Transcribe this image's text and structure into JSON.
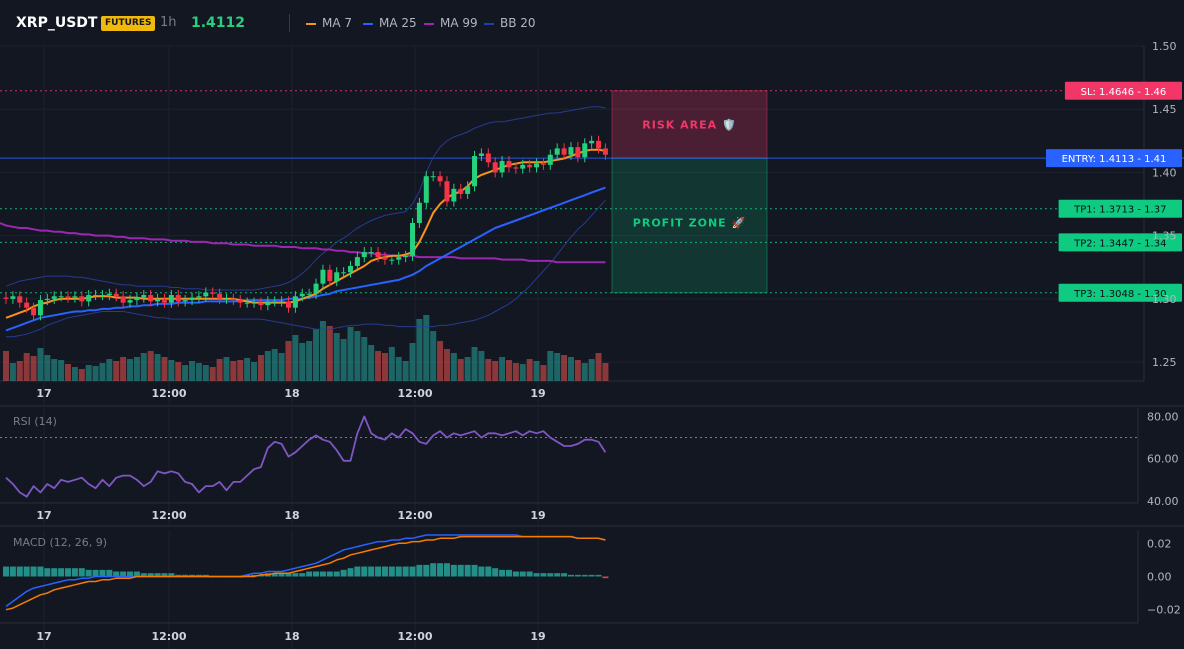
{
  "header": {
    "symbol": "XRP_USDT",
    "badge": "FUTURES",
    "interval": "1h",
    "price": "1.4112",
    "legend": [
      {
        "label": "MA 7",
        "color": "#f7931a"
      },
      {
        "label": "MA 25",
        "color": "#2962ff"
      },
      {
        "label": "MA 99",
        "color": "#9c27b0"
      },
      {
        "label": "BB 20",
        "color": "#1e40af"
      }
    ]
  },
  "colors": {
    "up": "#26a69a",
    "down": "#ef5350",
    "bg": "#131722",
    "risk": "#f23667",
    "entry": "#2962ff",
    "tp": "#0ecb81"
  },
  "chart_data": [
    {
      "type": "candlestick",
      "title": "XRP_USDT 1h",
      "x_ticks": [
        "17",
        "12:00",
        "18",
        "12:00",
        "19"
      ],
      "y_ticks": [
        "1.50",
        "1.45",
        "1.40",
        "1.35",
        "1.30",
        "1.25"
      ],
      "ylim": [
        1.235,
        1.5
      ],
      "close": [
        1.3,
        1.302,
        1.297,
        1.293,
        1.287,
        1.299,
        1.3,
        1.302,
        1.302,
        1.301,
        1.302,
        1.298,
        1.303,
        1.303,
        1.303,
        1.304,
        1.302,
        1.297,
        1.299,
        1.301,
        1.303,
        1.298,
        1.3,
        1.297,
        1.303,
        1.298,
        1.299,
        1.301,
        1.302,
        1.305,
        1.304,
        1.3,
        1.3,
        1.299,
        1.297,
        1.297,
        1.297,
        1.295,
        1.298,
        1.298,
        1.298,
        1.293,
        1.302,
        1.304,
        1.304,
        1.312,
        1.323,
        1.314,
        1.321,
        1.321,
        1.326,
        1.333,
        1.337,
        1.337,
        1.333,
        1.331,
        1.331,
        1.333,
        1.334,
        1.36,
        1.376,
        1.397,
        1.397,
        1.393,
        1.377,
        1.387,
        1.383,
        1.389,
        1.413,
        1.415,
        1.408,
        1.4,
        1.409,
        1.404,
        1.403,
        1.406,
        1.404,
        1.407,
        1.406,
        1.414,
        1.419,
        1.414,
        1.42,
        1.412,
        1.423,
        1.425,
        1.419,
        1.414
      ],
      "open": [
        1.301,
        1.3,
        1.302,
        1.297,
        1.293,
        1.287,
        1.299,
        1.3,
        1.302,
        1.302,
        1.301,
        1.302,
        1.298,
        1.303,
        1.303,
        1.303,
        1.304,
        1.302,
        1.297,
        1.299,
        1.301,
        1.303,
        1.298,
        1.3,
        1.297,
        1.303,
        1.298,
        1.299,
        1.301,
        1.302,
        1.305,
        1.304,
        1.3,
        1.3,
        1.299,
        1.297,
        1.297,
        1.297,
        1.295,
        1.298,
        1.298,
        1.298,
        1.293,
        1.302,
        1.304,
        1.304,
        1.312,
        1.323,
        1.314,
        1.321,
        1.321,
        1.326,
        1.333,
        1.337,
        1.337,
        1.333,
        1.331,
        1.331,
        1.333,
        1.334,
        1.36,
        1.376,
        1.397,
        1.397,
        1.393,
        1.377,
        1.387,
        1.383,
        1.389,
        1.413,
        1.415,
        1.408,
        1.4,
        1.409,
        1.404,
        1.403,
        1.406,
        1.404,
        1.407,
        1.406,
        1.414,
        1.419,
        1.414,
        1.42,
        1.412,
        1.423,
        1.425,
        1.419
      ],
      "volume": [
        30,
        18,
        20,
        28,
        25,
        33,
        26,
        22,
        21,
        17,
        14,
        12,
        16,
        15,
        18,
        22,
        20,
        24,
        22,
        24,
        28,
        30,
        27,
        24,
        21,
        19,
        16,
        20,
        18,
        16,
        14,
        22,
        24,
        20,
        21,
        23,
        19,
        26,
        30,
        32,
        28,
        40,
        46,
        38,
        40,
        52,
        60,
        55,
        48,
        42,
        54,
        50,
        44,
        36,
        30,
        28,
        34,
        24,
        20,
        38,
        62,
        66,
        50,
        40,
        32,
        28,
        22,
        24,
        34,
        30,
        22,
        20,
        24,
        21,
        18,
        17,
        22,
        20,
        16,
        30,
        28,
        26,
        24,
        21,
        18,
        22,
        28,
        18
      ],
      "ma7": [
        1.285,
        1.287,
        1.289,
        1.291,
        1.294,
        1.296,
        1.297,
        1.299,
        1.3,
        1.3,
        1.3,
        1.3,
        1.301,
        1.302,
        1.302,
        1.302,
        1.301,
        1.301,
        1.301,
        1.301,
        1.3,
        1.3,
        1.3,
        1.3,
        1.3,
        1.3,
        1.3,
        1.3,
        1.3,
        1.3,
        1.3,
        1.3,
        1.3,
        1.3,
        1.299,
        1.298,
        1.297,
        1.297,
        1.297,
        1.297,
        1.297,
        1.297,
        1.298,
        1.3,
        1.302,
        1.304,
        1.308,
        1.311,
        1.314,
        1.317,
        1.32,
        1.323,
        1.326,
        1.33,
        1.332,
        1.333,
        1.334,
        1.334,
        1.335,
        1.337,
        1.345,
        1.356,
        1.368,
        1.375,
        1.38,
        1.383,
        1.385,
        1.389,
        1.395,
        1.398,
        1.4,
        1.402,
        1.404,
        1.406,
        1.407,
        1.408,
        1.408,
        1.408,
        1.408,
        1.409,
        1.41,
        1.411,
        1.413,
        1.415,
        1.417,
        1.418,
        1.418,
        1.417
      ],
      "ma25": [
        1.275,
        1.277,
        1.279,
        1.281,
        1.283,
        1.285,
        1.286,
        1.287,
        1.288,
        1.289,
        1.29,
        1.29,
        1.291,
        1.291,
        1.292,
        1.292,
        1.293,
        1.293,
        1.294,
        1.294,
        1.295,
        1.295,
        1.296,
        1.296,
        1.296,
        1.297,
        1.297,
        1.297,
        1.297,
        1.298,
        1.298,
        1.298,
        1.298,
        1.298,
        1.298,
        1.299,
        1.299,
        1.299,
        1.299,
        1.299,
        1.299,
        1.3,
        1.3,
        1.3,
        1.301,
        1.302,
        1.303,
        1.304,
        1.306,
        1.307,
        1.308,
        1.309,
        1.31,
        1.311,
        1.312,
        1.313,
        1.314,
        1.315,
        1.317,
        1.319,
        1.322,
        1.326,
        1.329,
        1.332,
        1.335,
        1.338,
        1.341,
        1.344,
        1.347,
        1.35,
        1.353,
        1.356,
        1.358,
        1.36,
        1.362,
        1.364,
        1.366,
        1.368,
        1.37,
        1.372,
        1.374,
        1.376,
        1.378,
        1.38,
        1.382,
        1.384,
        1.386,
        1.388
      ],
      "ma99": [
        1.358,
        1.357,
        1.356,
        1.356,
        1.355,
        1.354,
        1.354,
        1.353,
        1.353,
        1.352,
        1.352,
        1.351,
        1.351,
        1.35,
        1.35,
        1.35,
        1.349,
        1.349,
        1.348,
        1.348,
        1.348,
        1.347,
        1.347,
        1.347,
        1.346,
        1.346,
        1.346,
        1.345,
        1.345,
        1.345,
        1.344,
        1.344,
        1.344,
        1.343,
        1.343,
        1.343,
        1.342,
        1.342,
        1.342,
        1.342,
        1.341,
        1.341,
        1.341,
        1.34,
        1.34,
        1.34,
        1.339,
        1.339,
        1.338,
        1.338,
        1.337,
        1.337,
        1.336,
        1.336,
        1.335,
        1.335,
        1.334,
        1.334,
        1.334,
        1.334,
        1.333,
        1.333,
        1.333,
        1.333,
        1.333,
        1.333,
        1.332,
        1.332,
        1.332,
        1.332,
        1.332,
        1.332,
        1.331,
        1.331,
        1.331,
        1.331,
        1.33,
        1.33,
        1.33,
        1.33,
        1.329,
        1.329,
        1.329,
        1.329,
        1.329,
        1.329,
        1.329,
        1.329
      ],
      "bb_upper": [
        1.31,
        1.312,
        1.314,
        1.315,
        1.316,
        1.317,
        1.318,
        1.318,
        1.318,
        1.318,
        1.317,
        1.317,
        1.316,
        1.315,
        1.314,
        1.313,
        1.312,
        1.311,
        1.311,
        1.31,
        1.31,
        1.31,
        1.31,
        1.31,
        1.309,
        1.309,
        1.308,
        1.308,
        1.308,
        1.307,
        1.307,
        1.307,
        1.307,
        1.307,
        1.307,
        1.307,
        1.307,
        1.308,
        1.309,
        1.31,
        1.311,
        1.313,
        1.316,
        1.32,
        1.325,
        1.331,
        1.336,
        1.34,
        1.345,
        1.348,
        1.352,
        1.356,
        1.359,
        1.362,
        1.364,
        1.366,
        1.367,
        1.368,
        1.369,
        1.375,
        1.385,
        1.4,
        1.412,
        1.42,
        1.425,
        1.428,
        1.43,
        1.432,
        1.435,
        1.437,
        1.439,
        1.44,
        1.44,
        1.441,
        1.442,
        1.443,
        1.444,
        1.445,
        1.446,
        1.447,
        1.447,
        1.448,
        1.449,
        1.45,
        1.451,
        1.452,
        1.452,
        1.451
      ],
      "bb_lower": [
        1.27,
        1.27,
        1.271,
        1.272,
        1.274,
        1.276,
        1.279,
        1.281,
        1.283,
        1.285,
        1.286,
        1.287,
        1.288,
        1.289,
        1.29,
        1.29,
        1.29,
        1.29,
        1.289,
        1.288,
        1.287,
        1.286,
        1.285,
        1.285,
        1.284,
        1.284,
        1.284,
        1.284,
        1.284,
        1.284,
        1.284,
        1.284,
        1.284,
        1.284,
        1.284,
        1.284,
        1.284,
        1.284,
        1.283,
        1.282,
        1.281,
        1.28,
        1.279,
        1.278,
        1.277,
        1.276,
        1.276,
        1.276,
        1.277,
        1.278,
        1.279,
        1.279,
        1.28,
        1.28,
        1.28,
        1.279,
        1.279,
        1.278,
        1.278,
        1.278,
        1.278,
        1.278,
        1.278,
        1.279,
        1.279,
        1.28,
        1.281,
        1.282,
        1.283,
        1.285,
        1.287,
        1.29,
        1.293,
        1.296,
        1.3,
        1.305,
        1.31,
        1.316,
        1.322,
        1.328,
        1.335,
        1.342,
        1.349,
        1.355,
        1.36,
        1.366,
        1.372,
        1.378
      ],
      "annotations": [
        {
          "label": "SL: 1.4646 - 1.46",
          "value": 1.4646,
          "kind": "stop-loss"
        },
        {
          "label": "ENTRY: 1.4113 - 1.41",
          "value": 1.4113,
          "kind": "entry"
        },
        {
          "label": "TP1: 1.3713 - 1.37",
          "value": 1.3713,
          "kind": "take-profit"
        },
        {
          "label": "TP2: 1.3447 - 1.34",
          "value": 1.3447,
          "kind": "take-profit"
        },
        {
          "label": "TP3: 1.3048 - 1.30",
          "value": 1.3048,
          "kind": "take-profit"
        }
      ],
      "zones": [
        {
          "label": "RISK AREA 🛡️",
          "from": 1.4113,
          "to": 1.4646
        },
        {
          "label": "PROFIT ZONE 🚀",
          "from": 1.3048,
          "to": 1.4113
        }
      ]
    },
    {
      "type": "line",
      "title": "RSI (14)",
      "y_ticks": [
        "80.00",
        "60.00",
        "40.00"
      ],
      "ylim": [
        39,
        84
      ],
      "overbought": 70,
      "values": [
        51,
        48,
        44,
        42,
        47,
        44,
        48,
        46,
        50,
        49,
        50,
        51,
        48,
        46,
        50,
        47,
        51,
        52,
        52,
        50,
        47,
        49,
        54,
        53,
        54,
        53,
        49,
        48,
        44,
        47,
        47,
        49,
        45,
        49,
        49,
        52,
        55,
        56,
        65,
        68,
        67,
        61,
        63,
        66,
        69,
        71,
        69,
        68,
        64,
        59,
        59,
        72,
        80,
        72,
        70,
        69,
        72,
        70,
        74,
        72,
        68,
        67,
        71,
        73,
        70,
        72,
        71,
        72,
        73,
        70,
        72,
        72,
        71,
        72,
        73,
        71,
        73,
        72,
        73,
        70,
        68,
        66,
        66,
        67,
        69,
        69,
        68,
        63
      ]
    },
    {
      "type": "line",
      "title": "MACD (12, 26, 9)",
      "y_ticks": [
        "0.02",
        "0.00",
        "−0.02"
      ],
      "ylim": [
        -0.028,
        0.028
      ],
      "series": [
        {
          "name": "MACD",
          "color": "#2962ff",
          "values": [
            -0.018,
            -0.015,
            -0.012,
            -0.009,
            -0.007,
            -0.006,
            -0.005,
            -0.004,
            -0.003,
            -0.002,
            -0.002,
            -0.001,
            -0.001,
            0.0,
            0.0,
            0.0,
            0.0,
            0.0,
            0.0,
            0.0,
            0.0,
            0.0,
            0.0,
            0.0,
            0.0,
            0.0,
            0.0,
            0.0,
            0.0,
            0.0,
            0.0,
            0.0,
            0.0,
            0.0,
            0.0,
            0.001,
            0.002,
            0.002,
            0.003,
            0.003,
            0.003,
            0.004,
            0.005,
            0.006,
            0.007,
            0.008,
            0.01,
            0.012,
            0.014,
            0.016,
            0.017,
            0.018,
            0.019,
            0.02,
            0.021,
            0.021,
            0.022,
            0.022,
            0.023,
            0.023,
            0.024,
            0.025,
            0.025,
            0.025,
            0.025,
            0.025,
            0.025,
            0.025,
            0.025,
            0.025,
            0.025,
            0.025,
            0.025,
            0.025,
            0.025,
            0.024,
            0.024,
            0.024,
            0.024,
            0.024,
            0.024,
            0.024,
            0.024,
            0.023,
            0.023,
            0.023,
            0.023,
            0.022
          ]
        },
        {
          "name": "Signal",
          "color": "#f57c00",
          "values": [
            -0.02,
            -0.019,
            -0.017,
            -0.015,
            -0.013,
            -0.011,
            -0.01,
            -0.008,
            -0.007,
            -0.006,
            -0.005,
            -0.004,
            -0.003,
            -0.003,
            -0.002,
            -0.002,
            -0.001,
            -0.001,
            -0.001,
            0.0,
            0.0,
            0.0,
            0.0,
            0.0,
            0.0,
            0.0,
            0.0,
            0.0,
            0.0,
            0.0,
            0.0,
            0.0,
            0.0,
            0.0,
            0.0,
            0.0,
            0.0,
            0.001,
            0.001,
            0.002,
            0.002,
            0.002,
            0.003,
            0.004,
            0.005,
            0.006,
            0.007,
            0.008,
            0.01,
            0.011,
            0.013,
            0.014,
            0.015,
            0.016,
            0.017,
            0.018,
            0.019,
            0.02,
            0.02,
            0.021,
            0.021,
            0.022,
            0.022,
            0.023,
            0.023,
            0.023,
            0.024,
            0.024,
            0.024,
            0.024,
            0.024,
            0.024,
            0.024,
            0.024,
            0.024,
            0.024,
            0.024,
            0.024,
            0.024,
            0.024,
            0.024,
            0.024,
            0.024,
            0.023,
            0.023,
            0.023,
            0.023,
            0.022
          ]
        }
      ],
      "histogram": [
        0.006,
        0.006,
        0.006,
        0.006,
        0.006,
        0.006,
        0.005,
        0.005,
        0.005,
        0.005,
        0.005,
        0.005,
        0.004,
        0.004,
        0.004,
        0.004,
        0.003,
        0.003,
        0.003,
        0.003,
        0.002,
        0.002,
        0.002,
        0.002,
        0.002,
        0.001,
        0.001,
        0.001,
        0.001,
        0.001,
        0.0,
        0.0,
        0.0,
        0.0,
        0.0,
        0.001,
        0.001,
        0.001,
        0.002,
        0.002,
        0.002,
        0.002,
        0.002,
        0.002,
        0.003,
        0.003,
        0.003,
        0.003,
        0.003,
        0.004,
        0.005,
        0.006,
        0.006,
        0.006,
        0.006,
        0.006,
        0.006,
        0.006,
        0.006,
        0.006,
        0.007,
        0.007,
        0.008,
        0.008,
        0.008,
        0.007,
        0.007,
        0.007,
        0.007,
        0.006,
        0.006,
        0.005,
        0.004,
        0.004,
        0.003,
        0.003,
        0.003,
        0.002,
        0.002,
        0.002,
        0.002,
        0.002,
        0.001,
        0.001,
        0.001,
        0.001,
        0.001,
        -0.001
      ]
    }
  ]
}
